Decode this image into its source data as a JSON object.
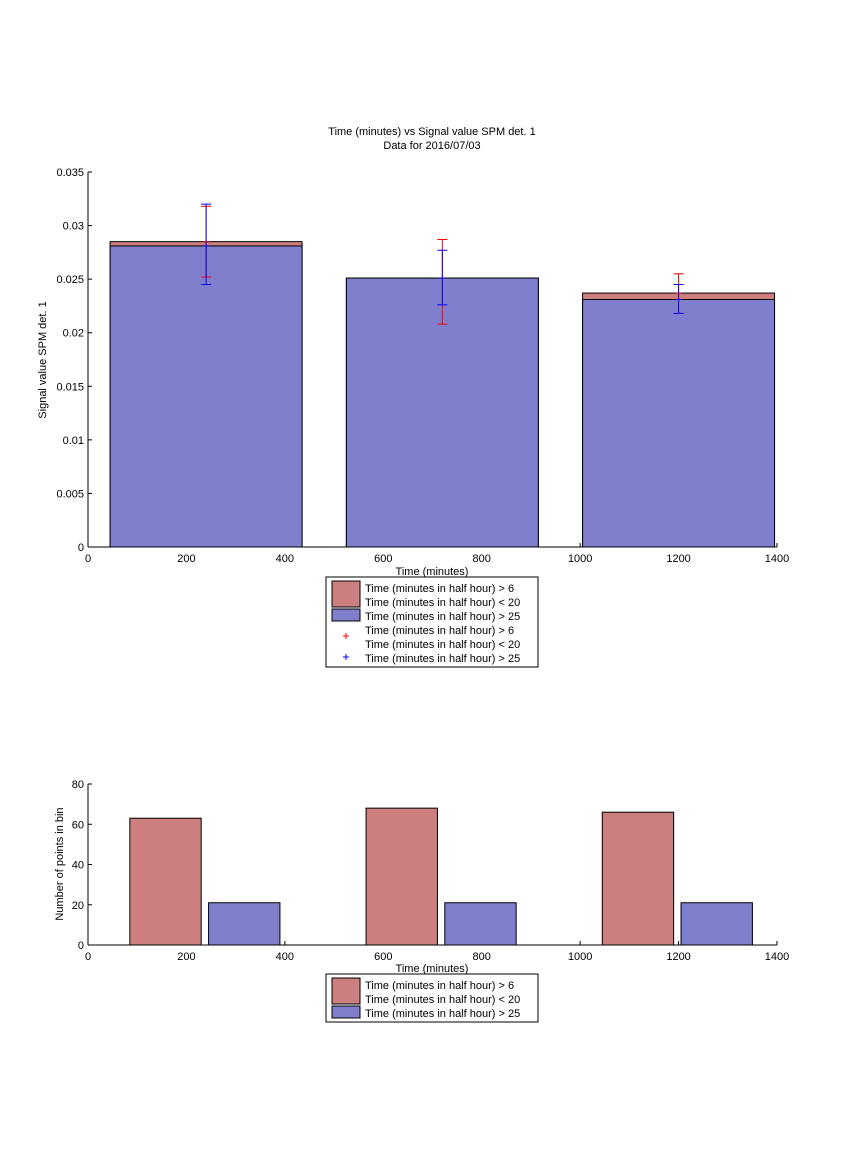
{
  "colors": {
    "red_fill": "#cd7f7f",
    "blue_fill": "#7f7fcd",
    "red_err": "#ff0000",
    "blue_err": "#0000ff"
  },
  "chart_data": [
    {
      "type": "bar",
      "title": "Time (minutes) vs Signal value SPM det. 1",
      "subtitle": "Data for 2016/07/03",
      "xlabel": "Time (minutes)",
      "ylabel": "Signal value SPM det. 1",
      "xlim": [
        0,
        1400
      ],
      "ylim": [
        0,
        0.035
      ],
      "xticks": [
        "0",
        "200",
        "400",
        "600",
        "800",
        "1000",
        "1200",
        "1400"
      ],
      "yticks": [
        "0",
        "0.005",
        "0.01",
        "0.015",
        "0.02",
        "0.025",
        "0.03",
        "0.035"
      ],
      "bins": [
        {
          "x_start": 45,
          "x_end": 435,
          "center": 240
        },
        {
          "x_start": 525,
          "x_end": 915,
          "center": 720
        },
        {
          "x_start": 1005,
          "x_end": 1395,
          "center": 1200
        }
      ],
      "series": [
        {
          "name": "Time (minutes in half hour) > 6\nTime (minutes in half hour) < 20",
          "color": "#cd7f7f",
          "values": [
            0.0285,
            0.0251,
            0.0237
          ],
          "error_low": [
            0.0252,
            0.0208,
            0.0218
          ],
          "error_high": [
            0.0318,
            0.0287,
            0.0255
          ]
        },
        {
          "name": "Time (minutes in half hour) > 25",
          "color": "#7f7fcd",
          "values": [
            0.0281,
            0.0251,
            0.0231
          ],
          "error_low": [
            0.0245,
            0.0226,
            0.0218
          ],
          "error_high": [
            0.032,
            0.0277,
            0.0245
          ]
        }
      ],
      "legend": [
        {
          "kind": "patch",
          "color": "#cd7f7f",
          "lines": [
            "Time (minutes in half hour) > 6",
            "Time (minutes in half hour) < 20"
          ]
        },
        {
          "kind": "patch",
          "color": "#7f7fcd",
          "lines": [
            "Time (minutes in half hour) > 25"
          ]
        },
        {
          "kind": "marker",
          "color": "#ff0000",
          "lines": [
            "Time (minutes in half hour) > 6",
            "Time (minutes in half hour) < 20"
          ]
        },
        {
          "kind": "marker",
          "color": "#0000ff",
          "lines": [
            "Time (minutes in half hour) > 25"
          ]
        }
      ],
      "grid": false,
      "legend_placement": "below"
    },
    {
      "type": "bar",
      "title": "",
      "xlabel": "Time (minutes)",
      "ylabel": "Number of points in bin",
      "xlim": [
        0,
        1400
      ],
      "ylim": [
        0,
        80
      ],
      "xticks": [
        "0",
        "200",
        "400",
        "600",
        "800",
        "1000",
        "1200",
        "1400"
      ],
      "yticks": [
        "0",
        "20",
        "40",
        "60",
        "80"
      ],
      "bins": [
        {
          "red": [
            85,
            230
          ],
          "blue": [
            245,
            390
          ]
        },
        {
          "red": [
            565,
            710
          ],
          "blue": [
            725,
            870
          ]
        },
        {
          "red": [
            1045,
            1190
          ],
          "blue": [
            1205,
            1350
          ]
        }
      ],
      "series": [
        {
          "name": "Time (minutes in half hour) > 6\nTime (minutes in half hour) < 20",
          "color": "#cd7f7f",
          "values": [
            63,
            68,
            66
          ]
        },
        {
          "name": "Time (minutes in half hour) > 25",
          "color": "#7f7fcd",
          "values": [
            21,
            21,
            21
          ]
        }
      ],
      "legend": [
        {
          "kind": "patch",
          "color": "#cd7f7f",
          "lines": [
            "Time (minutes in half hour) > 6",
            "Time (minutes in half hour) < 20"
          ]
        },
        {
          "kind": "patch",
          "color": "#7f7fcd",
          "lines": [
            "Time (minutes in half hour) > 25"
          ]
        }
      ],
      "grid": false,
      "legend_placement": "below"
    }
  ]
}
